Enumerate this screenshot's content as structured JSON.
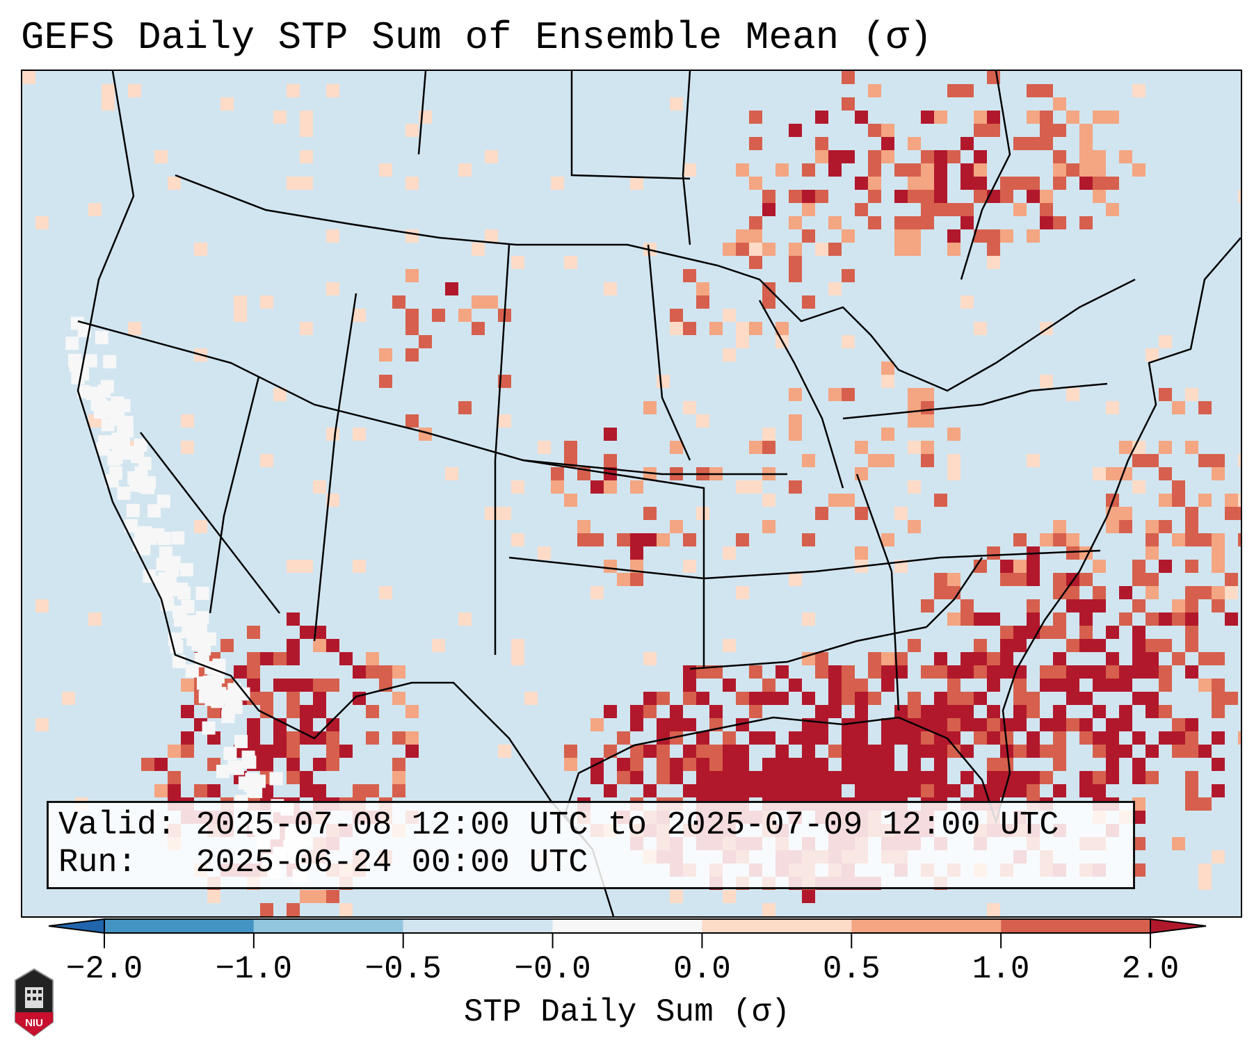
{
  "title": "GEFS Daily STP Sum of Ensemble Mean (σ)",
  "info": {
    "valid": "Valid: 2025-07-08 12:00 UTC to 2025-07-09 12:00 UTC",
    "run": "Run:   2025-06-24 00:00 UTC"
  },
  "colorbar": {
    "label": "STP Daily Sum (σ)",
    "ticks": [
      "−2.0",
      "−1.0",
      "−0.5",
      "−0.0",
      "0.0",
      "0.5",
      "1.0",
      "2.0"
    ],
    "colors": [
      "#4393c3",
      "#92c5de",
      "#d1e5f0",
      "#f7f7f7",
      "#fddbc7",
      "#f4a582",
      "#d6604d"
    ],
    "extend_low_color": "#2166ac",
    "extend_high_color": "#b2182b"
  },
  "logo": {
    "text": "NIU"
  },
  "map": {
    "background": "#d1e5f0"
  }
}
